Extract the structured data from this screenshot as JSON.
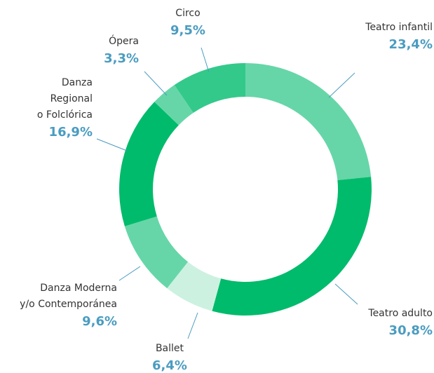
{
  "chart_data": {
    "type": "pie",
    "categories": [
      "Teatro infantil",
      "Teatro adulto",
      "Ballet",
      "Danza Moderna\ny/o Contemporánea",
      "Danza\nRegional\no Folclórica",
      "Ópera",
      "Circo"
    ],
    "values": [
      23.4,
      30.8,
      6.4,
      9.6,
      16.9,
      3.3,
      9.5
    ],
    "value_labels": [
      "23,4%",
      "30,8%",
      "6,4%",
      "9,6%",
      "16,9%",
      "3,3%",
      "9,5%"
    ],
    "colors": [
      "#66d6a8",
      "#00bb6b",
      "#ccf1e1",
      "#66d6a8",
      "#00bb6b",
      "#66d6a8",
      "#33c98b"
    ]
  }
}
